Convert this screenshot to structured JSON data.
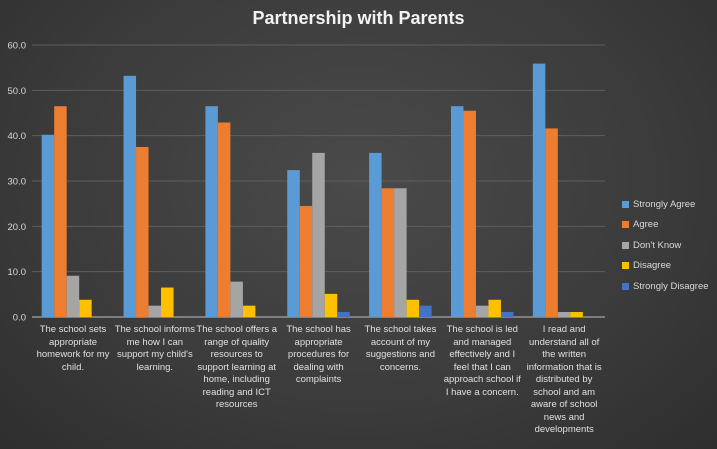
{
  "chart_data": {
    "type": "bar",
    "title": "Partnership with Parents",
    "xlabel": "",
    "ylabel": "",
    "ylim": [
      0,
      60
    ],
    "yticks": [
      "0.0",
      "10.0",
      "20.0",
      "30.0",
      "40.0",
      "50.0",
      "60.0"
    ],
    "grid": true,
    "legend_position": "right",
    "categories": [
      "The school sets appropriate homework for my child.",
      "The school informs me how I can support my child's learning.",
      "The school offers a range of quality resources to support learning at home, including reading and ICT resources",
      "The school has appropriate procedures for dealing with complaints",
      "The school takes account of my suggestions and concerns.",
      "The school is led and managed effectively and I feel that I can approach school if I have a concern.",
      "I read and understand all of the written information that is distributed by school and am aware of school news and developments"
    ],
    "series": [
      {
        "name": "Strongly Agree",
        "color": "#5b9bd5",
        "values": [
          40.2,
          53.2,
          46.5,
          32.4,
          36.2,
          46.5,
          55.9
        ]
      },
      {
        "name": "Agree",
        "color": "#ed7d31",
        "values": [
          46.5,
          37.5,
          42.9,
          24.5,
          28.4,
          45.5,
          41.6
        ]
      },
      {
        "name": "Don't Know",
        "color": "#a5a5a5",
        "values": [
          9.1,
          2.5,
          7.8,
          36.2,
          28.4,
          2.5,
          1.1
        ]
      },
      {
        "name": "Disagree",
        "color": "#ffc000",
        "values": [
          3.8,
          6.5,
          2.5,
          5.1,
          3.8,
          3.8,
          1.1
        ]
      },
      {
        "name": "Strongly Disagree",
        "color": "#4472c4",
        "values": [
          0,
          0,
          0,
          1.1,
          2.5,
          1.1,
          0
        ]
      }
    ]
  }
}
